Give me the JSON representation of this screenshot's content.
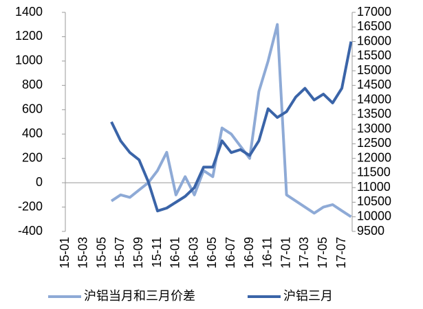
{
  "chart_data": {
    "type": "line",
    "categories": [
      "15-01",
      null,
      "15-03",
      null,
      "15-05",
      null,
      "15-07",
      null,
      "15-09",
      null,
      "15-11",
      null,
      "16-01",
      null,
      "16-03",
      null,
      "16-05",
      null,
      "16-07",
      null,
      "16-09",
      null,
      "16-11",
      null,
      "17-01",
      null,
      "17-03",
      null,
      "17-05",
      null,
      "17-07",
      null
    ],
    "series": [
      {
        "name": "沪铝当月和三月价差",
        "color": "#8eaad6",
        "values": [
          null,
          null,
          null,
          null,
          null,
          -150,
          -100,
          -120,
          -60,
          0,
          100,
          250,
          -100,
          50,
          -100,
          100,
          50,
          450,
          400,
          300,
          200,
          750,
          1000,
          1300,
          -100,
          -150,
          -200,
          -250,
          -200,
          -180,
          -230,
          -280
        ]
      },
      {
        "name": "沪铝三月",
        "color": "#3a64a8",
        "axis": "y2",
        "values": [
          null,
          null,
          null,
          null,
          null,
          13250,
          12600,
          12200,
          11950,
          11200,
          10200,
          10300,
          10500,
          10700,
          11000,
          11700,
          11700,
          12600,
          12200,
          12300,
          12100,
          12600,
          13700,
          13400,
          13600,
          14100,
          14400,
          14000,
          14200,
          13900,
          14400,
          16000
        ]
      }
    ],
    "ylim": [
      -400,
      1400
    ],
    "yticks": [
      -400,
      -200,
      0,
      200,
      400,
      600,
      800,
      1000,
      1200,
      1400
    ],
    "y2lim": [
      9500,
      17000
    ],
    "y2ticks": [
      9500,
      10000,
      10500,
      11000,
      11500,
      12000,
      12500,
      13000,
      13500,
      14000,
      14500,
      15000,
      15500,
      16000,
      16500,
      17000
    ],
    "grid": false
  }
}
